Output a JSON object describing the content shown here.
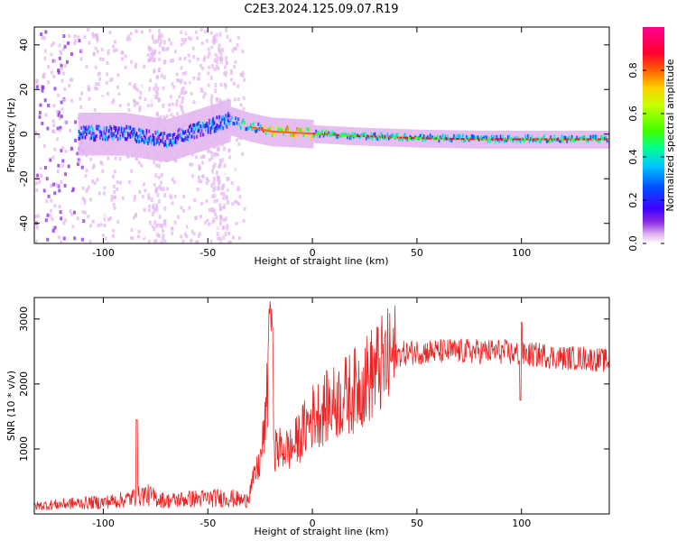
{
  "title": "C2E3.2024.125.09.07.R19",
  "chart_data": [
    {
      "type": "heatmap",
      "xlabel": "Height of straight line (km)",
      "ylabel": "Frequency (Hz)",
      "xlim": [
        -133,
        142
      ],
      "ylim": [
        -49,
        48
      ],
      "x_ticks": [
        -100,
        -50,
        0,
        50,
        100
      ],
      "y_ticks": [
        40,
        20,
        0,
        -20,
        -40
      ],
      "colorbar": {
        "label": "Normalized spectral amplitude",
        "range": [
          0,
          1
        ],
        "ticks": [
          "0.0",
          "0.2",
          "0.4",
          "0.6",
          "0.8"
        ],
        "colors": [
          "#ffffff",
          "#e4b8f0",
          "#8a2be2",
          "#4000ff",
          "#0050ff",
          "#00c8ff",
          "#00ff90",
          "#40ff00",
          "#c8ff00",
          "#ffd000",
          "#ff6000",
          "#ff0030",
          "#ff0090"
        ]
      },
      "ridge": {
        "description_points_x": [
          -110,
          -90,
          -70,
          -50,
          -40,
          -30,
          -20,
          0,
          20,
          50,
          80,
          110,
          142
        ],
        "description_points_y": [
          0,
          0,
          -3,
          3,
          6,
          3,
          1,
          0,
          -1,
          -2,
          -2.5,
          -2.5,
          -2.5
        ]
      },
      "ridge_peak": {
        "x": [
          -25,
          0
        ],
        "y": 0,
        "level": 0.9
      }
    },
    {
      "type": "line",
      "xlabel": "Height of straight line (km)",
      "ylabel": "SNR (10 * v/v)",
      "xlim": [
        -133,
        142
      ],
      "ylim": [
        0,
        3330
      ],
      "x_ticks": [
        -100,
        -50,
        0,
        50,
        100
      ],
      "y_ticks": [
        1000,
        2000,
        3000
      ],
      "color": "#ee2222",
      "series_outline": {
        "x": [
          -133,
          -120,
          -110,
          -100,
          -90,
          -80,
          -70,
          -60,
          -50,
          -40,
          -32,
          -25,
          -22,
          -20,
          -18,
          -10,
          0,
          10,
          20,
          30,
          40,
          50,
          60,
          70,
          80,
          90,
          100,
          110,
          120,
          130,
          142
        ],
        "y": [
          120,
          150,
          170,
          180,
          220,
          300,
          200,
          230,
          240,
          250,
          200,
          800,
          1500,
          3300,
          1000,
          1000,
          1500,
          1700,
          1900,
          2200,
          2450,
          2500,
          2500,
          2500,
          2500,
          2500,
          2450,
          2450,
          2400,
          2400,
          2350
        ]
      }
    }
  ]
}
